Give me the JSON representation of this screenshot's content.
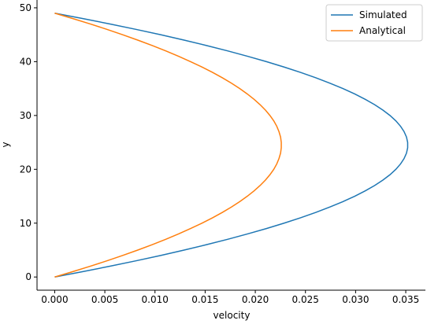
{
  "chart_data": {
    "type": "line",
    "xlabel": "velocity",
    "ylabel": "y",
    "y": [
      0,
      1,
      2,
      3,
      4,
      5,
      6,
      7,
      8,
      9,
      10,
      11,
      12,
      13,
      14,
      15,
      16,
      17,
      18,
      19,
      20,
      21,
      22,
      23,
      24,
      25,
      26,
      27,
      28,
      29,
      30,
      31,
      32,
      33,
      34,
      35,
      36,
      37,
      38,
      39,
      40,
      41,
      42,
      43,
      44,
      45,
      46,
      47,
      48,
      49
    ],
    "series": [
      {
        "name": "Simulated",
        "color": "#1f77b4",
        "values": [
          0,
          0.00281,
          0.00551,
          0.00809,
          0.01056,
          0.0129,
          0.01513,
          0.01724,
          0.01923,
          0.02111,
          0.02287,
          0.02451,
          0.02604,
          0.02744,
          0.02873,
          0.02991,
          0.03096,
          0.0319,
          0.03272,
          0.03343,
          0.03401,
          0.03448,
          0.03483,
          0.03507,
          0.03519,
          0.03519,
          0.03507,
          0.03483,
          0.03448,
          0.03401,
          0.03343,
          0.03272,
          0.0319,
          0.03096,
          0.02991,
          0.02873,
          0.02744,
          0.02604,
          0.02451,
          0.02287,
          0.02111,
          0.01923,
          0.01724,
          0.01513,
          0.0129,
          0.01056,
          0.00809,
          0.00551,
          0.00281,
          0
        ]
      },
      {
        "name": "Analytical",
        "color": "#ff7f0e",
        "values": [
          0,
          0.00181,
          0.00354,
          0.0052,
          0.00678,
          0.00828,
          0.00971,
          0.01107,
          0.01235,
          0.01355,
          0.01468,
          0.01574,
          0.01672,
          0.01762,
          0.01845,
          0.0192,
          0.01988,
          0.02048,
          0.02101,
          0.02146,
          0.02184,
          0.02214,
          0.02236,
          0.02252,
          0.02259,
          0.02259,
          0.02252,
          0.02236,
          0.02214,
          0.02184,
          0.02146,
          0.02101,
          0.02048,
          0.01988,
          0.0192,
          0.01845,
          0.01762,
          0.01672,
          0.01574,
          0.01468,
          0.01355,
          0.01235,
          0.01107,
          0.00971,
          0.00828,
          0.00678,
          0.0052,
          0.00354,
          0.00181,
          0
        ]
      }
    ],
    "xlim": [
      -0.00176,
      0.03696
    ],
    "ylim": [
      -2.45,
      51.45
    ],
    "xticks": [
      {
        "value": 0,
        "label": "0.000"
      },
      0.005,
      {
        "value": 0.01,
        "label": "0.010"
      },
      0.015,
      {
        "value": 0.02,
        "label": "0.020"
      },
      0.025,
      {
        "value": 0.03,
        "label": "0.030"
      },
      0.035
    ],
    "yticks": [
      0,
      10,
      20,
      30,
      40,
      50
    ],
    "legend": "upper right"
  }
}
